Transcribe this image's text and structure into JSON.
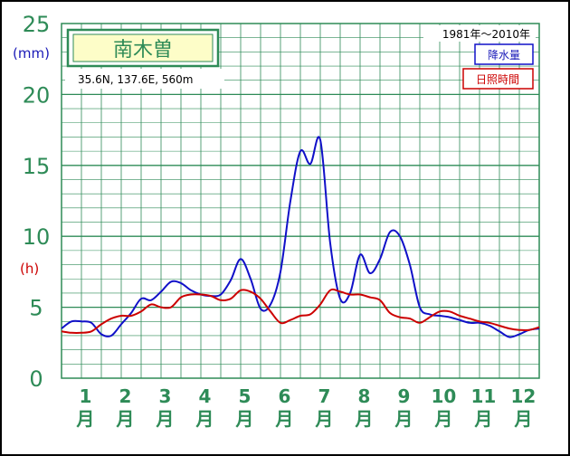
{
  "chart_data": {
    "type": "line",
    "station": "南木曽",
    "location": "35.6N, 137.6E, 560m",
    "period": "1981年～2010年",
    "y_unit_primary": "(mm)",
    "y_unit_secondary": "(h)",
    "ylim": [
      0,
      25
    ],
    "yticks": [
      "0",
      "5",
      "10",
      "15",
      "20",
      "25"
    ],
    "months": [
      {
        "num": "1",
        "unit": "月"
      },
      {
        "num": "2",
        "unit": "月"
      },
      {
        "num": "3",
        "unit": "月"
      },
      {
        "num": "4",
        "unit": "月"
      },
      {
        "num": "5",
        "unit": "月"
      },
      {
        "num": "6",
        "unit": "月"
      },
      {
        "num": "7",
        "unit": "月"
      },
      {
        "num": "8",
        "unit": "月"
      },
      {
        "num": "9",
        "unit": "月"
      },
      {
        "num": "10",
        "unit": "月"
      },
      {
        "num": "11",
        "unit": "月"
      },
      {
        "num": "12",
        "unit": "月"
      }
    ],
    "grid": true,
    "series": [
      {
        "name": "降水量",
        "color": "#1010c8",
        "x": [
          0.0,
          0.25,
          0.5,
          0.75,
          1.0,
          1.25,
          1.5,
          1.75,
          2.0,
          2.25,
          2.5,
          2.75,
          3.0,
          3.25,
          3.5,
          3.75,
          4.0,
          4.25,
          4.5,
          4.75,
          5.0,
          5.25,
          5.5,
          5.75,
          6.0,
          6.25,
          6.5,
          6.75,
          7.0,
          7.25,
          7.5,
          7.75,
          8.0,
          8.25,
          8.5,
          8.75,
          9.0,
          9.25,
          9.5,
          9.75,
          10.0,
          10.25,
          10.5,
          10.75,
          11.0,
          11.25,
          11.5,
          11.75,
          12.0
        ],
        "values": [
          3.5,
          4.0,
          4.0,
          3.9,
          3.1,
          3.0,
          3.8,
          4.6,
          5.6,
          5.5,
          6.1,
          6.8,
          6.7,
          6.2,
          5.9,
          5.8,
          5.9,
          6.9,
          8.4,
          7.0,
          4.9,
          5.2,
          7.5,
          12.5,
          16.0,
          15.1,
          16.8,
          9.5,
          5.6,
          6.0,
          8.7,
          7.4,
          8.4,
          10.3,
          10.0,
          8.0,
          5.0,
          4.5,
          4.4,
          4.3,
          4.1,
          3.9,
          3.9,
          3.7,
          3.3,
          2.9,
          3.1,
          3.4,
          3.5
        ]
      },
      {
        "name": "日照時間",
        "color": "#cc0000",
        "x": [
          0.0,
          0.25,
          0.5,
          0.75,
          1.0,
          1.25,
          1.5,
          1.75,
          2.0,
          2.25,
          2.5,
          2.75,
          3.0,
          3.25,
          3.5,
          3.75,
          4.0,
          4.25,
          4.5,
          4.75,
          5.0,
          5.25,
          5.5,
          5.75,
          6.0,
          6.25,
          6.5,
          6.75,
          7.0,
          7.25,
          7.5,
          7.75,
          8.0,
          8.25,
          8.5,
          8.75,
          9.0,
          9.25,
          9.5,
          9.75,
          10.0,
          10.25,
          10.5,
          10.75,
          11.0,
          11.25,
          11.5,
          11.75,
          12.0
        ],
        "values": [
          3.3,
          3.2,
          3.2,
          3.3,
          3.8,
          4.2,
          4.4,
          4.4,
          4.7,
          5.2,
          5.0,
          5.0,
          5.7,
          5.9,
          5.9,
          5.8,
          5.5,
          5.6,
          6.2,
          6.1,
          5.6,
          4.7,
          3.9,
          4.1,
          4.4,
          4.5,
          5.2,
          6.2,
          6.1,
          5.9,
          5.9,
          5.7,
          5.5,
          4.6,
          4.3,
          4.2,
          3.9,
          4.3,
          4.7,
          4.7,
          4.4,
          4.2,
          4.0,
          3.9,
          3.7,
          3.5,
          3.4,
          3.4,
          3.6
        ]
      }
    ]
  }
}
